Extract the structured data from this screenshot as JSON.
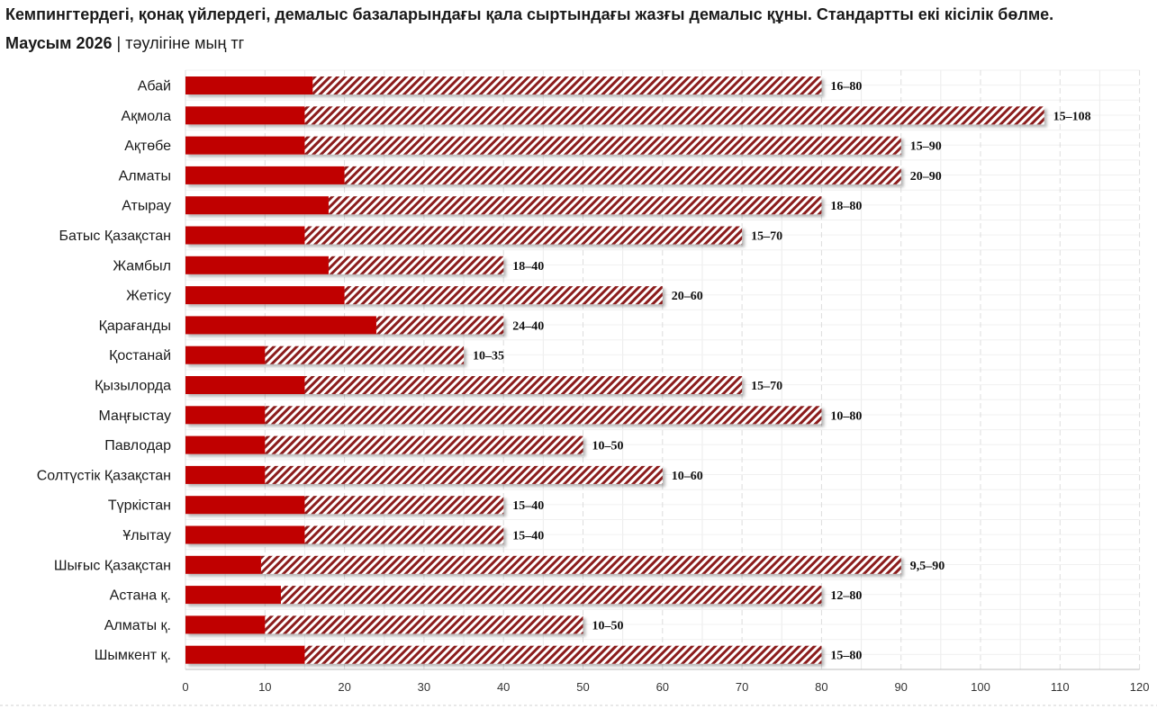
{
  "header": {
    "title": "Кемпингтердегі, қонақ үйлердегі, демалыс базаларындағы қала сыртындағы жазғы демалыс құны. Стандартты екі кісілік бөлме.",
    "season": "Маусым 2026",
    "separator": "|",
    "unit": "тәулігіне мың тг"
  },
  "colors": {
    "min_bar": "#c00000",
    "hatch": "#8b1a1a",
    "grid": "#dddddd"
  },
  "chart_data": {
    "type": "bar",
    "orientation": "horizontal",
    "stacked_range": true,
    "title": "Кемпингтердегі, қонақ үйлердегі, демалыс базаларындағы қала сыртындағы жазғы демалыс құны. Стандартты екі кісілік бөлме.",
    "xlabel": "",
    "ylabel": "",
    "xlim": [
      0,
      120
    ],
    "xticks": [
      0,
      10,
      20,
      30,
      40,
      50,
      60,
      70,
      80,
      90,
      100,
      110,
      120
    ],
    "grid": true,
    "categories": [
      "Абай",
      "Ақмола",
      "Ақтөбе",
      "Алматы",
      "Атырау",
      "Батыс Қазақстан",
      "Жамбыл",
      "Жетісу",
      "Қарағанды",
      "Қостанай",
      "Қызылорда",
      "Маңғыстау",
      "Павлодар",
      "Солтүстік Қазақстан",
      "Түркістан",
      "Ұлытау",
      "Шығыс Қазақстан",
      "Астана қ.",
      "Алматы қ.",
      "Шымкент қ."
    ],
    "min": [
      16,
      15,
      15,
      20,
      18,
      15,
      18,
      20,
      24,
      10,
      15,
      10,
      10,
      10,
      15,
      15,
      9.5,
      12,
      10,
      15
    ],
    "max": [
      80,
      108,
      90,
      90,
      80,
      70,
      40,
      60,
      40,
      35,
      70,
      80,
      50,
      60,
      40,
      40,
      90,
      80,
      50,
      80
    ],
    "labels": [
      "16–80",
      "15–108",
      "15–90",
      "20–90",
      "18–80",
      "15–70",
      "18–40",
      "20–60",
      "24–40",
      "10–35",
      "15–70",
      "10–80",
      "10–50",
      "10–60",
      "15–40",
      "15–40",
      "9,5–90",
      "12–80",
      "10–50",
      "15–80"
    ]
  }
}
